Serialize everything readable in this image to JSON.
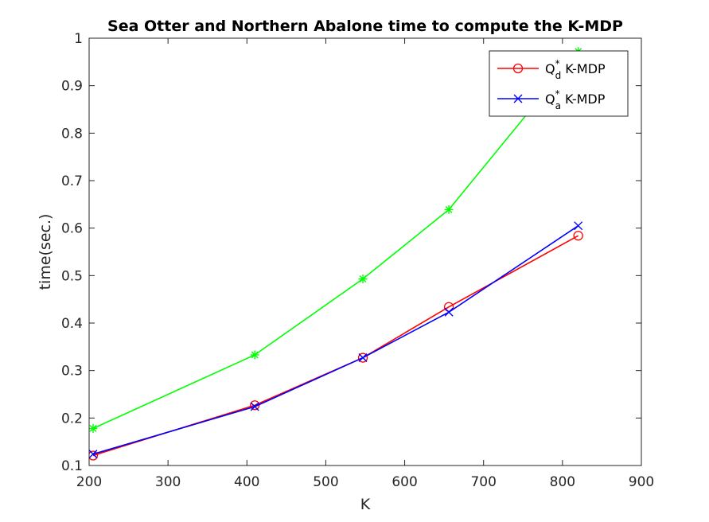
{
  "chart_data": {
    "type": "line",
    "title": "Sea Otter and Northern Abalone time to compute the K-MDP",
    "xlabel": "K",
    "ylabel": "time(sec.)",
    "xlim": [
      200,
      900
    ],
    "ylim": [
      0.1,
      1.0
    ],
    "xticks": [
      200,
      300,
      400,
      500,
      600,
      700,
      800,
      900
    ],
    "yticks": [
      0.1,
      0.2,
      0.3,
      0.4,
      0.5,
      0.6,
      0.7,
      0.8,
      0.9,
      1.0
    ],
    "xtick_labels": [
      "200",
      "300",
      "400",
      "500",
      "600",
      "700",
      "800",
      "900"
    ],
    "ytick_labels": [
      "0.1",
      "0.2",
      "0.3",
      "0.4",
      "0.5",
      "0.6",
      "0.7",
      "0.8",
      "0.9",
      "1"
    ],
    "grid": false,
    "legend_position": "top-right",
    "series": [
      {
        "name": "Q_d^* K-MDP",
        "legend": {
          "base": "Q",
          "sub": "d",
          "sup": "*",
          "suffix": " K-MDP"
        },
        "color": "#ff0000",
        "marker": "circle",
        "x": [
          205,
          410,
          547,
          656,
          820
        ],
        "y": [
          0.121,
          0.227,
          0.327,
          0.434,
          0.584
        ]
      },
      {
        "name": "Q_a^* K-MDP",
        "legend": {
          "base": "Q",
          "sub": "a",
          "sup": "*",
          "suffix": " K-MDP"
        },
        "color": "#0000ff",
        "marker": "x",
        "x": [
          205,
          410,
          547,
          656,
          820
        ],
        "y": [
          0.124,
          0.224,
          0.327,
          0.423,
          0.605
        ]
      },
      {
        "color": "#00ff00",
        "marker": "asterisk",
        "x": [
          205,
          410,
          547,
          656,
          820
        ],
        "y": [
          0.178,
          0.333,
          0.493,
          0.639,
          0.972
        ]
      }
    ]
  }
}
